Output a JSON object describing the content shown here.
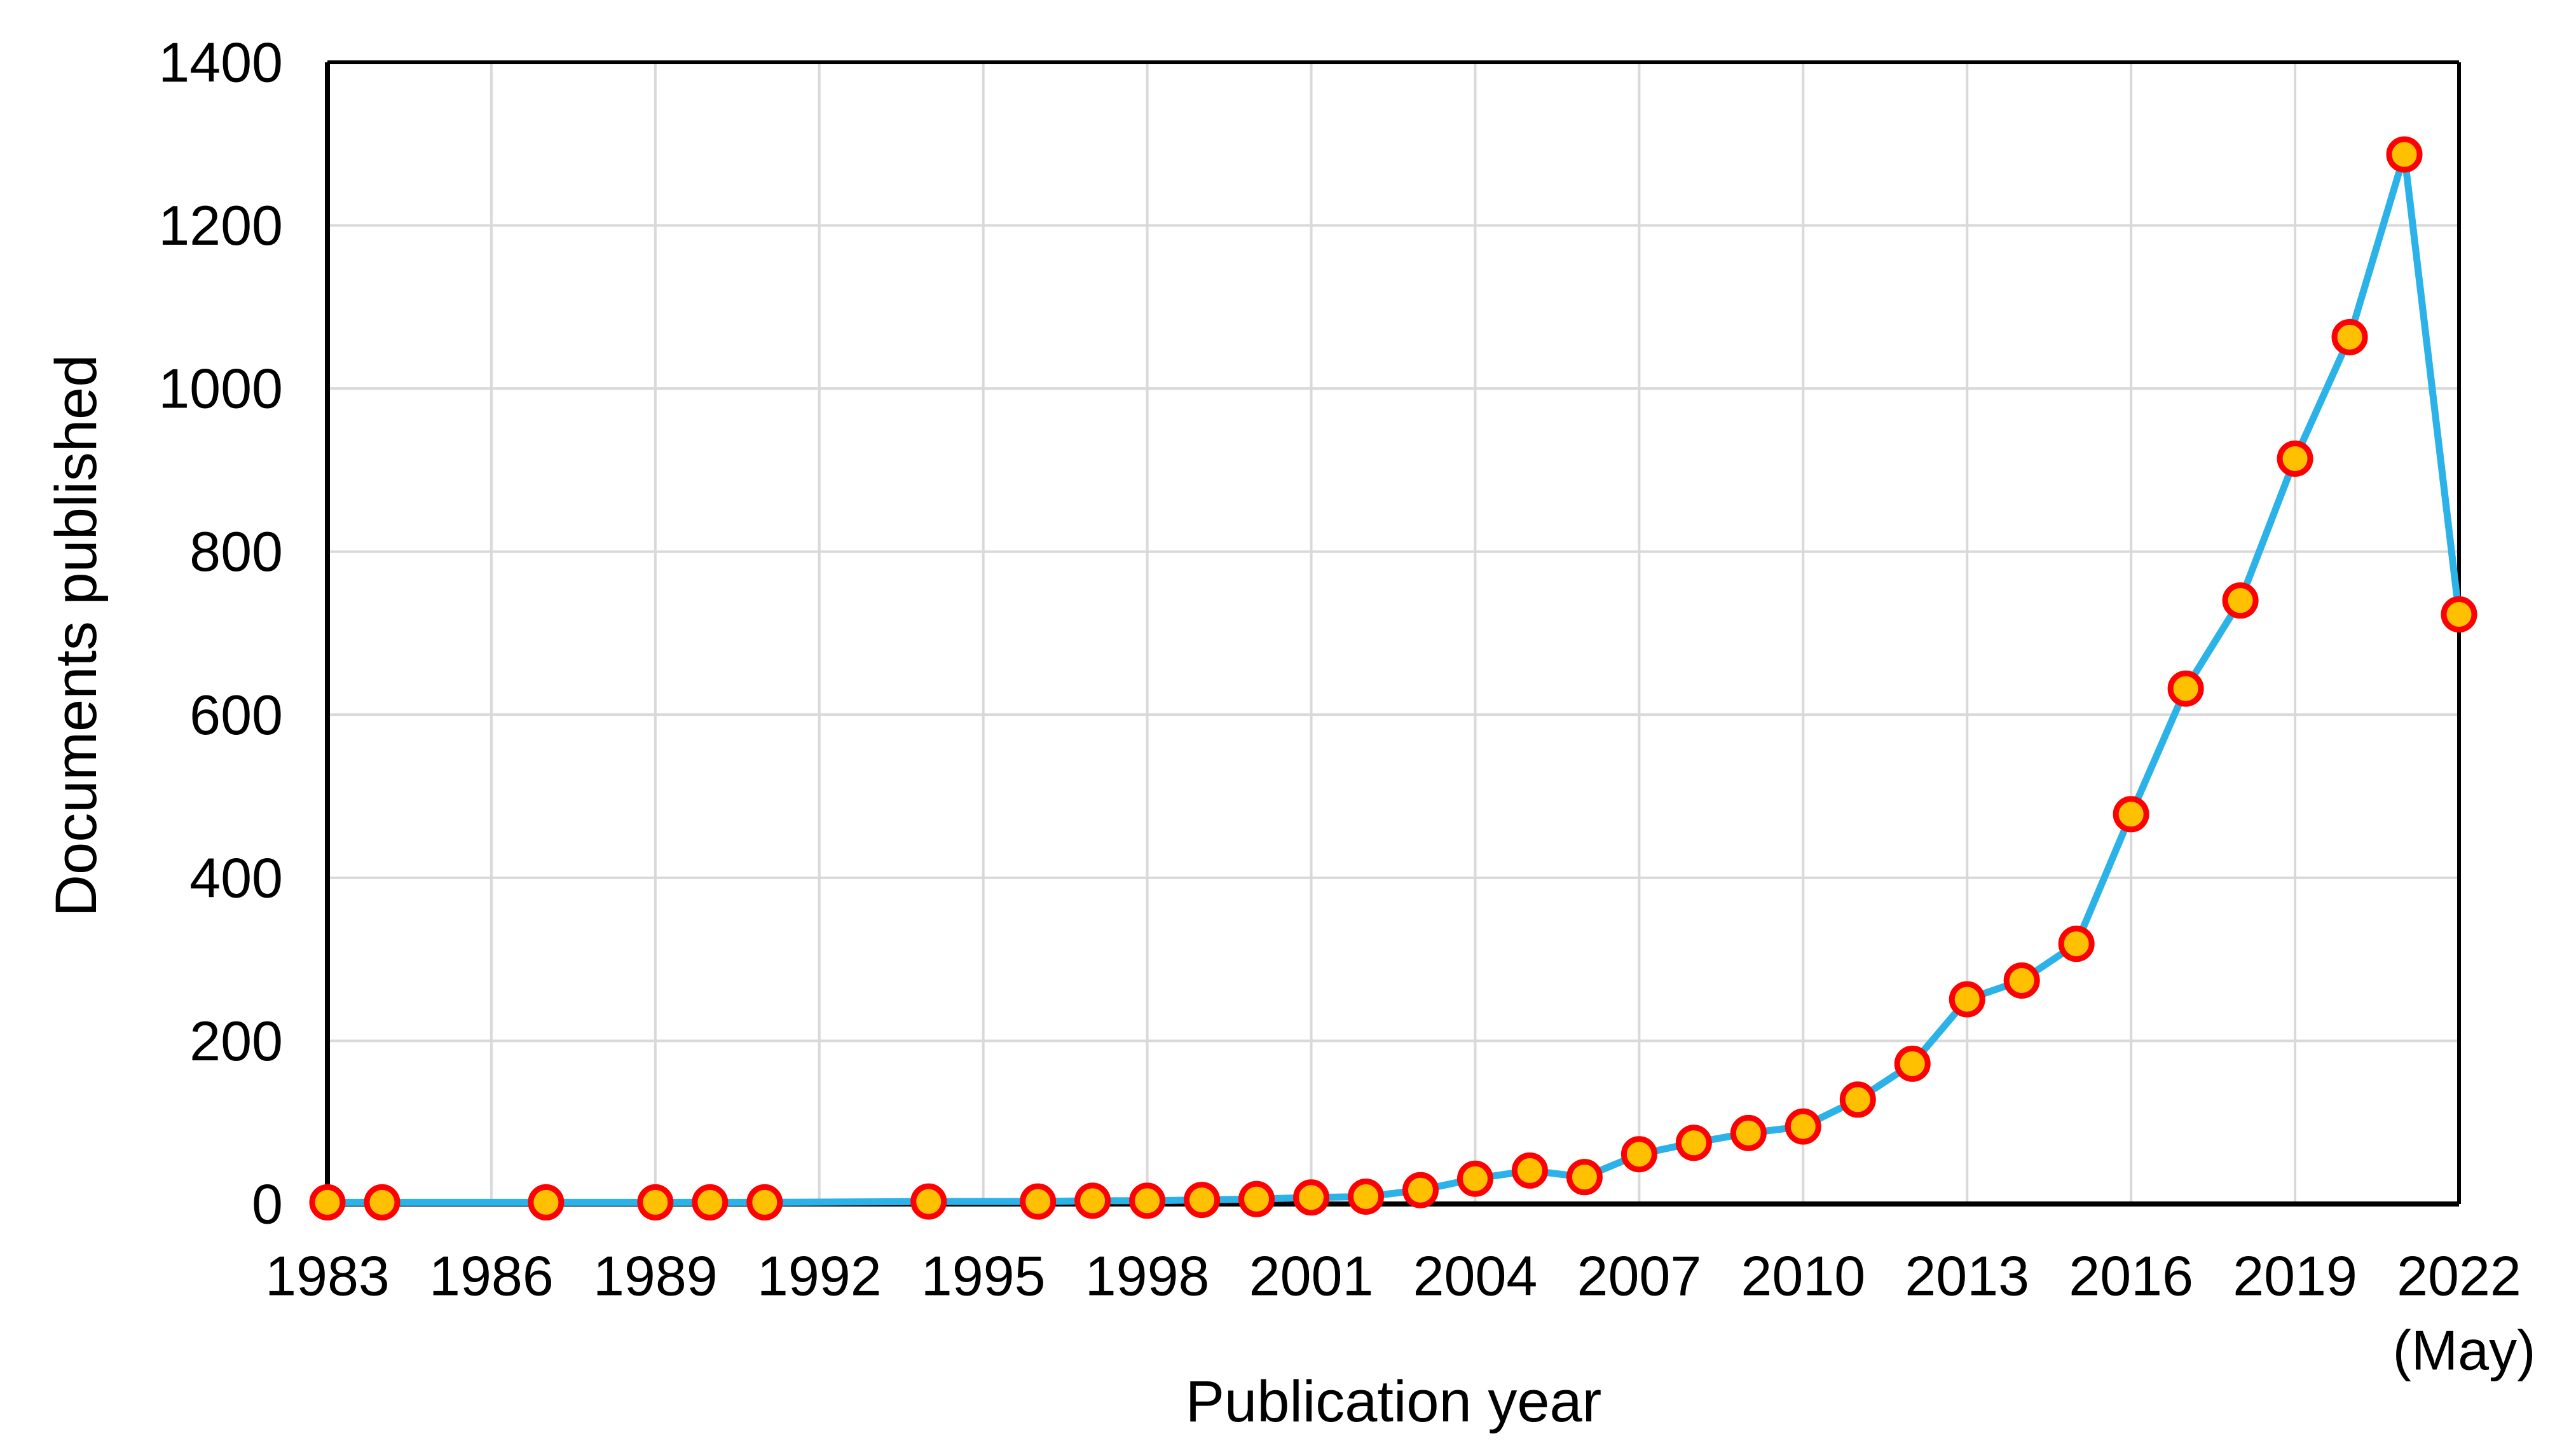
{
  "chart": {
    "background_color": "#FFFFFF",
    "y_axis_title": "Documents published",
    "x_axis_title": "Publication year",
    "x_tick_note": "(May)"
  },
  "chart_data": {
    "type": "line",
    "title": "",
    "xlabel": "Publication year",
    "ylabel": "Documents published",
    "xlim": [
      1983,
      2022
    ],
    "ylim": [
      0,
      1400
    ],
    "grid": true,
    "legend": "none",
    "gridline_color": "#D9D9D9",
    "axis_color": "#000000",
    "line_color": "#2BB2E8",
    "marker_fill_color": "#FFC000",
    "marker_border_color": "#FF0000",
    "y_ticks": [
      0,
      200,
      400,
      600,
      800,
      1000,
      1200,
      1400
    ],
    "x_ticks": [
      1983,
      1986,
      1989,
      1992,
      1995,
      1998,
      2001,
      2004,
      2007,
      2010,
      2013,
      2016,
      2019,
      2022
    ],
    "x_tick_note": "(May)",
    "x_tick_note_under": 2022,
    "points": [
      {
        "year": 1983,
        "value": 2
      },
      {
        "year": 1984,
        "value": 2
      },
      {
        "year": 1987,
        "value": 2
      },
      {
        "year": 1989,
        "value": 2
      },
      {
        "year": 1990,
        "value": 2
      },
      {
        "year": 1991,
        "value": 2
      },
      {
        "year": 1994,
        "value": 3
      },
      {
        "year": 1996,
        "value": 3
      },
      {
        "year": 1997,
        "value": 4
      },
      {
        "year": 1998,
        "value": 4
      },
      {
        "year": 1999,
        "value": 5
      },
      {
        "year": 2000,
        "value": 6
      },
      {
        "year": 2001,
        "value": 8
      },
      {
        "year": 2002,
        "value": 9
      },
      {
        "year": 2003,
        "value": 17
      },
      {
        "year": 2004,
        "value": 31
      },
      {
        "year": 2005,
        "value": 41
      },
      {
        "year": 2006,
        "value": 33
      },
      {
        "year": 2007,
        "value": 61
      },
      {
        "year": 2008,
        "value": 75
      },
      {
        "year": 2009,
        "value": 87
      },
      {
        "year": 2010,
        "value": 95
      },
      {
        "year": 2011,
        "value": 128
      },
      {
        "year": 2012,
        "value": 172
      },
      {
        "year": 2013,
        "value": 251
      },
      {
        "year": 2014,
        "value": 274
      },
      {
        "year": 2015,
        "value": 319
      },
      {
        "year": 2016,
        "value": 478
      },
      {
        "year": 2017,
        "value": 632
      },
      {
        "year": 2018,
        "value": 740
      },
      {
        "year": 2019,
        "value": 914
      },
      {
        "year": 2020,
        "value": 1063
      },
      {
        "year": 2021,
        "value": 1287
      },
      {
        "year": 2022,
        "value": 723
      }
    ]
  }
}
